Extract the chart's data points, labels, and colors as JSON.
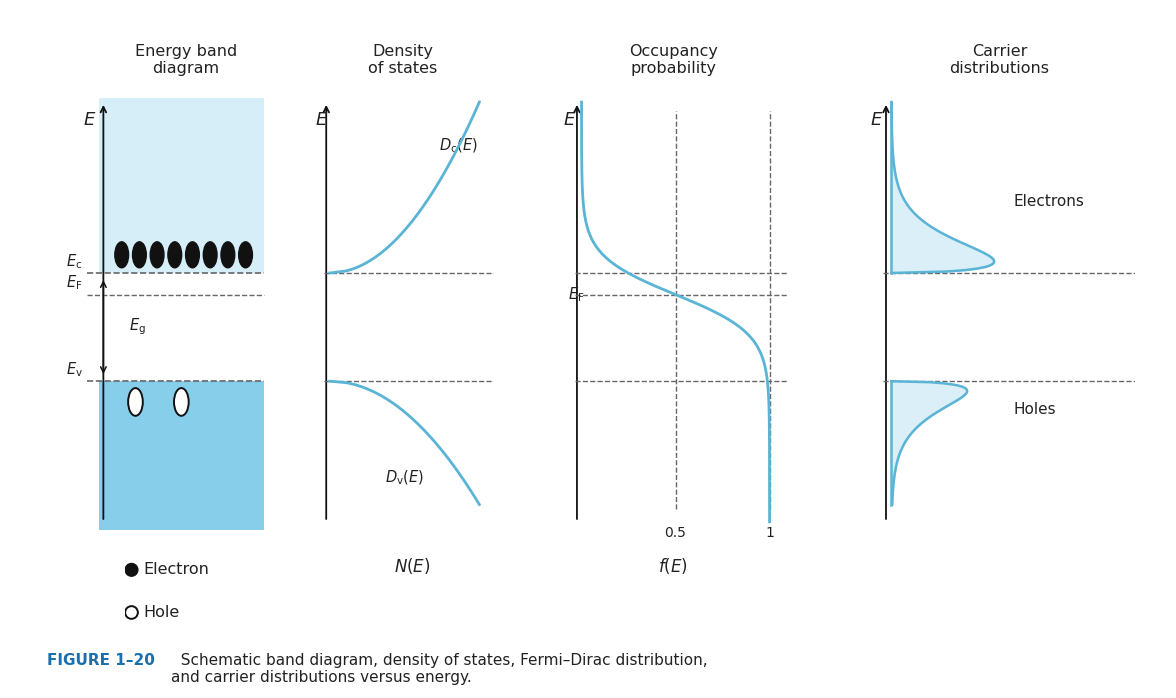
{
  "bg_color": "#ffffff",
  "light_blue_cb": "#d6eef8",
  "light_blue_vb": "#87ceeb",
  "curve_color": "#5ab4d6",
  "dashed_color": "#666666",
  "axis_color": "#111111",
  "text_color": "#222222",
  "figure_label_color": "#1a6faf",
  "Ec_rel": 0.595,
  "EF_rel": 0.545,
  "Ev_rel": 0.345,
  "kT": 0.045,
  "panel1_title": "Energy band\ndiagram",
  "panel2_title": "Density\nof states",
  "panel3_title": "Occupancy\nprobability",
  "panel4_title": "Carrier\ndistributions",
  "legend_electron": "Electron",
  "legend_hole": "Hole",
  "electrons_label": "Electrons",
  "holes_label": "Holes",
  "caption_bold": "FIGURE 1–20",
  "caption_rest": "  Schematic band diagram, density of states, Fermi–Dirac distribution,\nand carrier distributions versus energy."
}
